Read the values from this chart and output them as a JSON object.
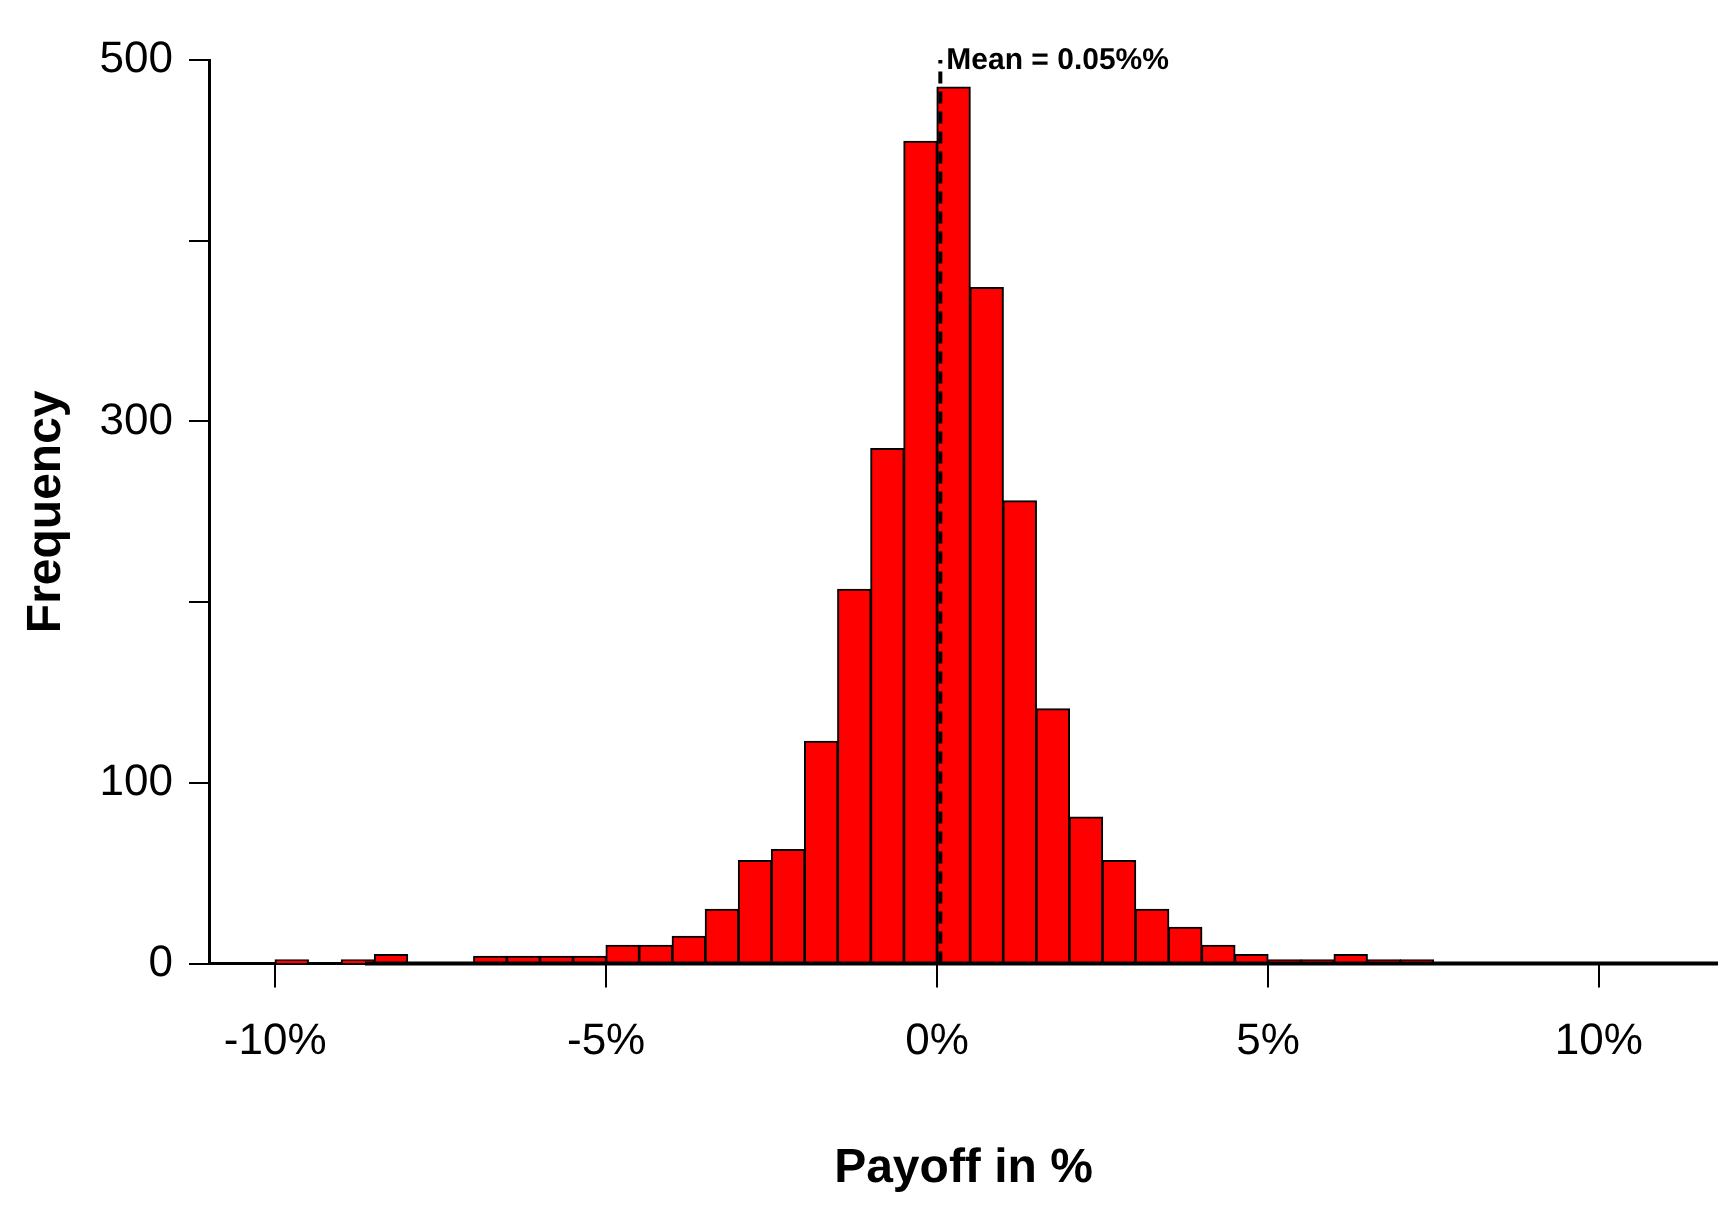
{
  "chart_data": {
    "type": "histogram",
    "xlabel": "Payoff in %",
    "ylabel": "Frequency",
    "bins": [
      -10,
      -9.5,
      -9,
      -8.5,
      -8,
      -7.5,
      -7,
      -6.5,
      -6,
      -5.5,
      -5,
      -4.5,
      -4,
      -3.5,
      -3,
      -2.5,
      -2,
      -1.5,
      -1,
      -0.5,
      0,
      0.5,
      1,
      1.5,
      2,
      2.5,
      3,
      3.5,
      4,
      4.5,
      5,
      5.5,
      6,
      6.5,
      7,
      7.5
    ],
    "values": [
      2,
      0,
      2,
      5,
      0,
      0,
      4,
      4,
      4,
      4,
      10,
      10,
      15,
      30,
      57,
      63,
      123,
      207,
      285,
      455,
      485,
      374,
      256,
      141,
      81,
      57,
      30,
      20,
      10,
      5,
      2,
      2,
      5,
      2,
      2
    ],
    "color": "#ff0000",
    "xlim": [
      -11,
      11.8
    ],
    "xticks": [
      {
        "value": -10,
        "label": "-10%"
      },
      {
        "value": -5,
        "label": "-5%"
      },
      {
        "value": 0,
        "label": "0%"
      },
      {
        "value": 5,
        "label": "5%"
      },
      {
        "value": 10,
        "label": "10%"
      }
    ],
    "ylim": [
      0,
      500
    ],
    "yticks": [
      0,
      100,
      {
        "value": 200,
        "label": null
      },
      300,
      {
        "value": 400,
        "label": null
      },
      500
    ],
    "ref_lines": [
      {
        "axis": "x",
        "value": 0.05,
        "label": "Mean = 0.05%%",
        "line_style": "dashed",
        "color": "#000000"
      },
      {
        "axis": "y",
        "value": 0,
        "label": null,
        "line_style": "solid",
        "color": "#000000"
      }
    ],
    "grid": false,
    "legend": false
  }
}
